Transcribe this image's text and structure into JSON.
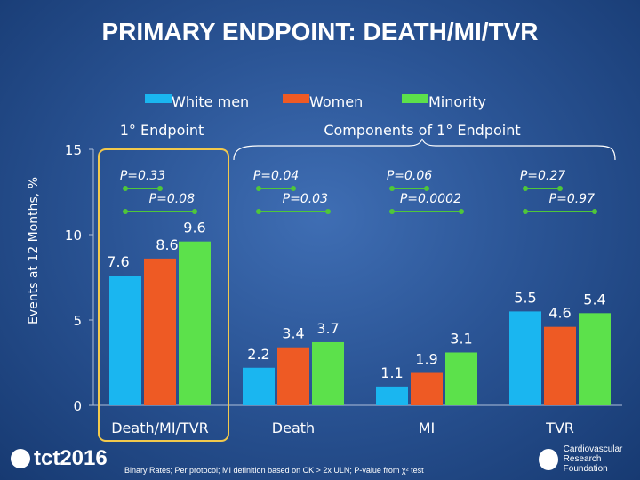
{
  "slide_title": "PRIMARY ENDPOINT: DEATH/MI/TVR",
  "colors": {
    "series": [
      "#1ab6f0",
      "#ee5a24",
      "#5ce14b"
    ],
    "pvalue": "#4fc73a",
    "highlight": "#f2c94c",
    "axis": "#aebfda"
  },
  "chart_data": {
    "type": "bar",
    "title": "",
    "xlabel": "",
    "ylabel": "Events at 12 Months, %",
    "ylim": [
      0,
      15
    ],
    "yticks": [
      0,
      5,
      10,
      15
    ],
    "categories": [
      "Death/MI/TVR",
      "Death",
      "MI",
      "TVR"
    ],
    "series": [
      {
        "name": "White men",
        "values": [
          7.6,
          2.2,
          1.1,
          5.5
        ]
      },
      {
        "name": "Women",
        "values": [
          8.6,
          3.4,
          1.9,
          4.6
        ]
      },
      {
        "name": "Minority",
        "values": [
          9.6,
          3.7,
          3.1,
          5.4
        ]
      }
    ],
    "group_headers": {
      "primary": "1° Endpoint",
      "components": "Components of 1° Endpoint"
    },
    "pvalues": [
      {
        "category": 0,
        "from": 0,
        "to": 1,
        "level": "upper",
        "label": "P=0.33"
      },
      {
        "category": 0,
        "from": 0,
        "to": 2,
        "level": "lower",
        "label": "P=0.08"
      },
      {
        "category": 1,
        "from": 0,
        "to": 1,
        "level": "upper",
        "label": "P=0.04"
      },
      {
        "category": 1,
        "from": 0,
        "to": 2,
        "level": "lower",
        "label": "P=0.03"
      },
      {
        "category": 2,
        "from": 0,
        "to": 1,
        "level": "upper",
        "label": "P=0.06"
      },
      {
        "category": 2,
        "from": 0,
        "to": 2,
        "level": "lower",
        "label": "P=0.0002"
      },
      {
        "category": 3,
        "from": 0,
        "to": 1,
        "level": "upper",
        "label": "P=0.27"
      },
      {
        "category": 3,
        "from": 0,
        "to": 2,
        "level": "lower",
        "label": "P=0.97"
      }
    ]
  },
  "footnote": "Binary Rates; Per protocol; MI definition based on CK > 2x ULN; P-value from χ² test",
  "logo_left": "tct2016",
  "logo_right": [
    "Cardiovascular",
    "Research Foundation"
  ]
}
